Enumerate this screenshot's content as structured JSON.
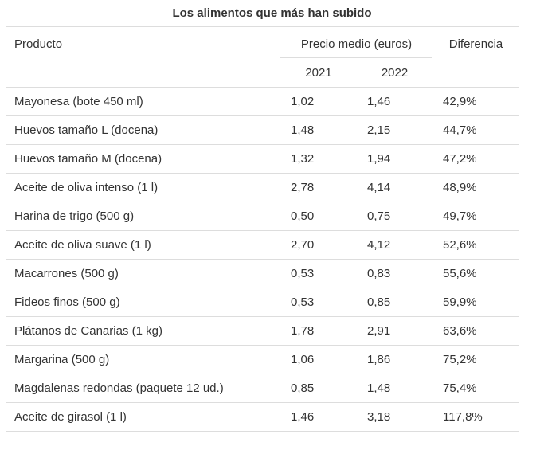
{
  "title": "Los alimentos que más han subido",
  "table": {
    "headers": {
      "product": "Producto",
      "price_group": "Precio medio (euros)",
      "year1": "2021",
      "year2": "2022",
      "difference": "Diferencia"
    },
    "rows": [
      {
        "product": "Mayonesa (bote 450 ml)",
        "price_2021": "1,02",
        "price_2022": "1,46",
        "difference": "42,9%"
      },
      {
        "product": "Huevos tamaño L (docena)",
        "price_2021": "1,48",
        "price_2022": "2,15",
        "difference": "44,7%"
      },
      {
        "product": "Huevos tamaño M (docena)",
        "price_2021": "1,32",
        "price_2022": "1,94",
        "difference": "47,2%"
      },
      {
        "product": "Aceite de oliva intenso (1 l)",
        "price_2021": "2,78",
        "price_2022": "4,14",
        "difference": "48,9%"
      },
      {
        "product": "Harina de trigo (500 g)",
        "price_2021": "0,50",
        "price_2022": "0,75",
        "difference": "49,7%"
      },
      {
        "product": "Aceite de oliva suave (1 l)",
        "price_2021": "2,70",
        "price_2022": "4,12",
        "difference": "52,6%"
      },
      {
        "product": "Macarrones (500 g)",
        "price_2021": "0,53",
        "price_2022": "0,83",
        "difference": "55,6%"
      },
      {
        "product": "Fideos finos (500 g)",
        "price_2021": "0,53",
        "price_2022": "0,85",
        "difference": "59,9%"
      },
      {
        "product": "Plátanos de Canarias (1 kg)",
        "price_2021": "1,78",
        "price_2022": "2,91",
        "difference": "63,6%"
      },
      {
        "product": "Margarina (500 g)",
        "price_2021": "1,06",
        "price_2022": "1,86",
        "difference": "75,2%"
      },
      {
        "product": "Magdalenas redondas (paquete 12 ud.)",
        "price_2021": "0,85",
        "price_2022": "1,48",
        "difference": "75,4%"
      },
      {
        "product": "Aceite de girasol (1 l)",
        "price_2021": "1,46",
        "price_2022": "3,18",
        "difference": "117,8%"
      }
    ]
  },
  "colors": {
    "text": "#333333",
    "border": "#dddddd",
    "background": "#ffffff"
  },
  "chart_data": {
    "type": "table",
    "title": "Los alimentos que más han subido",
    "column_groups": [
      {
        "label": "Precio medio (euros)",
        "columns": [
          "2021",
          "2022"
        ]
      }
    ],
    "columns": [
      "Producto",
      "2021",
      "2022",
      "Diferencia"
    ],
    "rows": [
      [
        "Mayonesa (bote 450 ml)",
        1.02,
        1.46,
        "42,9%"
      ],
      [
        "Huevos tamaño L (docena)",
        1.48,
        2.15,
        "44,7%"
      ],
      [
        "Huevos tamaño M (docena)",
        1.32,
        1.94,
        "47,2%"
      ],
      [
        "Aceite de oliva intenso (1 l)",
        2.78,
        4.14,
        "48,9%"
      ],
      [
        "Harina de trigo (500 g)",
        0.5,
        0.75,
        "49,7%"
      ],
      [
        "Aceite de oliva suave (1 l)",
        2.7,
        4.12,
        "52,6%"
      ],
      [
        "Macarrones (500 g)",
        0.53,
        0.83,
        "55,6%"
      ],
      [
        "Fideos finos (500 g)",
        0.53,
        0.85,
        "59,9%"
      ],
      [
        "Plátanos de Canarias (1 kg)",
        1.78,
        2.91,
        "63,6%"
      ],
      [
        "Margarina (500 g)",
        1.06,
        1.86,
        "75,2%"
      ],
      [
        "Magdalenas redondas (paquete 12 ud.)",
        0.85,
        1.48,
        "75,4%"
      ],
      [
        "Aceite de girasol (1 l)",
        1.46,
        3.18,
        "117,8%"
      ]
    ],
    "layout": {
      "units": "euros",
      "decimal_separator": ",",
      "grid": "horizontal-rules",
      "header_alignment": "numeric columns centered",
      "value_alignment": "left"
    }
  }
}
